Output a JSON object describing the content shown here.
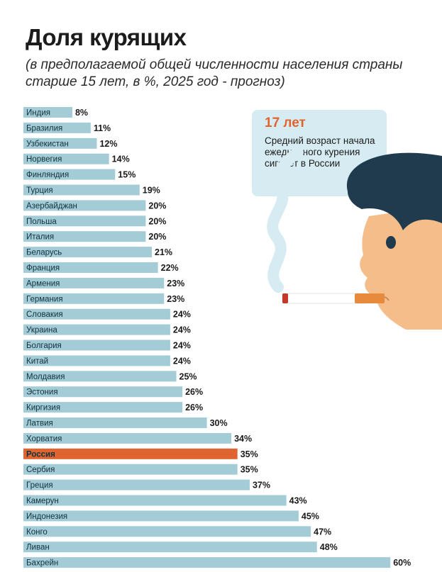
{
  "header": {
    "title": "Доля курящих",
    "subtitle": "(в предполагаемой общей численности населения страны старше 15 лет, в %, 2025 год - прогноз)"
  },
  "callout": {
    "headline": "17 лет",
    "text": "Средний возраст начала ежедневного курения сигарет в России"
  },
  "colors": {
    "bar": "#a4ccd6",
    "highlight": "#e0642f",
    "callout_bg": "#d6ecf2",
    "hair": "#1f3b4d",
    "skin": "#f4bd8a"
  },
  "chart_data": {
    "type": "bar",
    "orientation": "horizontal",
    "categories": [
      "Индия",
      "Бразилия",
      "Узбекистан",
      "Норвегия",
      "Финляндия",
      "Турция",
      "Азербайджан",
      "Польша",
      "Италия",
      "Беларусь",
      "Франция",
      "Армения",
      "Германия",
      "Словакия",
      "Украина",
      "Болгария",
      "Китай",
      "Молдавия",
      "Эстония",
      "Киргизия",
      "Латвия",
      "Хорватия",
      "Россия",
      "Сербия",
      "Греция",
      "Камерун",
      "Индонезия",
      "Конго",
      "Ливан",
      "Бахрейн"
    ],
    "values": [
      8,
      11,
      12,
      14,
      15,
      19,
      20,
      20,
      20,
      21,
      22,
      23,
      23,
      24,
      24,
      24,
      24,
      25,
      26,
      26,
      30,
      34,
      35,
      35,
      37,
      43,
      45,
      47,
      48,
      60
    ],
    "value_labels": [
      "8%",
      "11%",
      "12%",
      "14%",
      "15%",
      "19%",
      "20%",
      "20%",
      "20%",
      "21%",
      "22%",
      "23%",
      "23%",
      "24%",
      "24%",
      "24%",
      "24%",
      "25%",
      "26%",
      "26%",
      "30%",
      "34%",
      "35%",
      "35%",
      "37%",
      "43%",
      "45%",
      "47%",
      "48%",
      "60%"
    ],
    "highlight_category": "Россия",
    "unit": "%",
    "xlim": [
      0,
      60
    ]
  }
}
